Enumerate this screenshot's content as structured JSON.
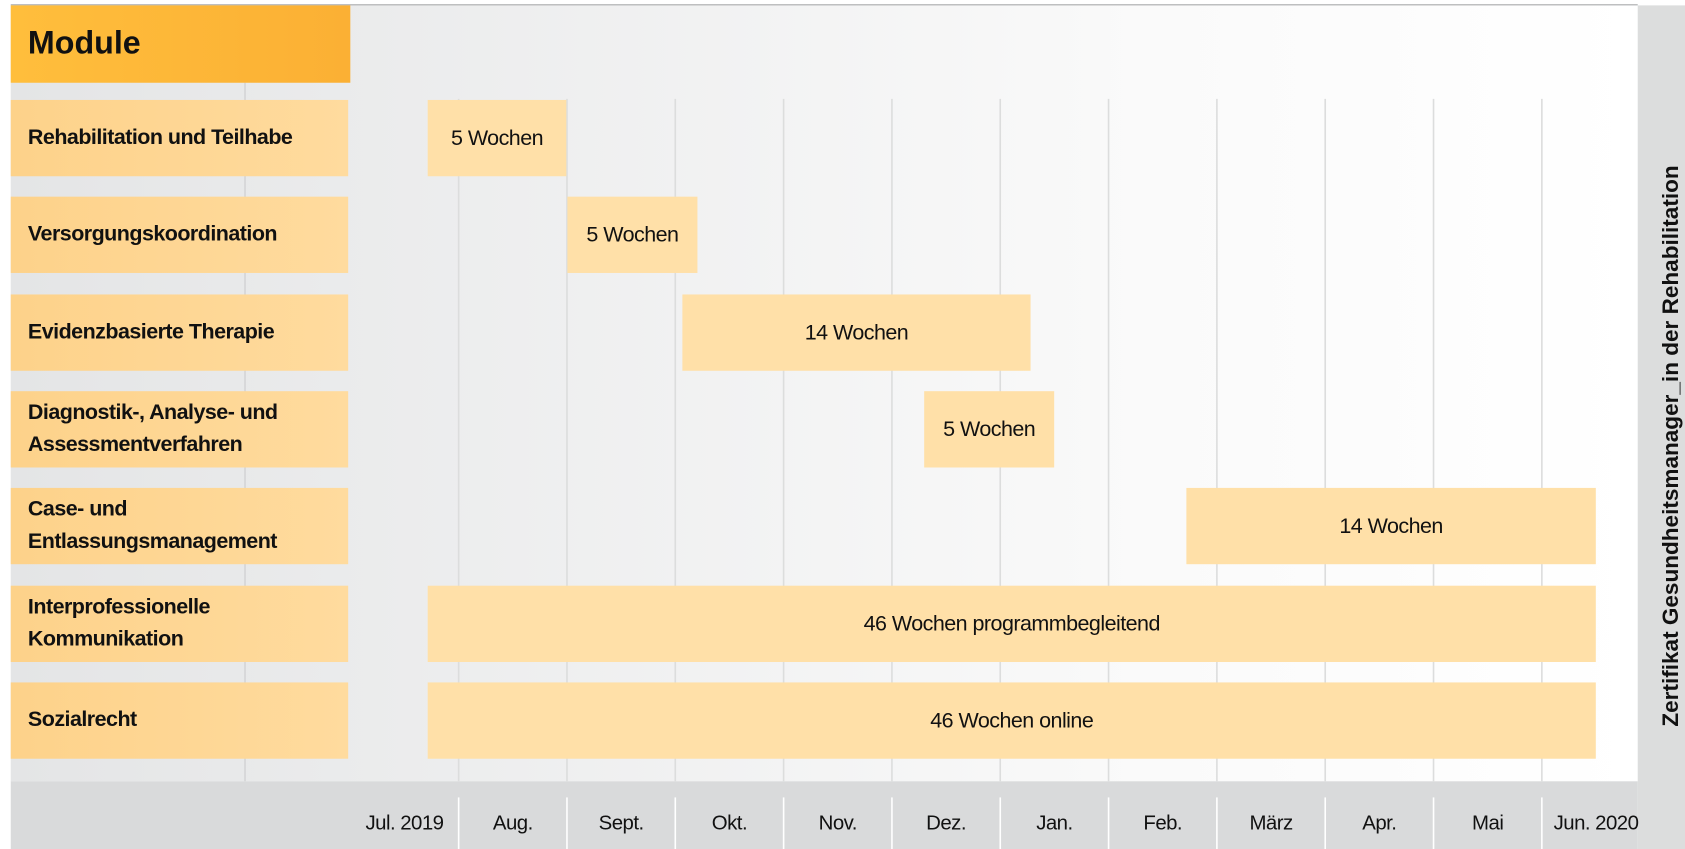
{
  "header": "Module",
  "rows": [
    {
      "label": [
        "Rehabilitation und Teilhabe"
      ],
      "duration": "5 Wochen"
    },
    {
      "label": [
        "Versorgungskoordination"
      ],
      "duration": "5 Wochen"
    },
    {
      "label": [
        "Evidenzbasierte Therapie"
      ],
      "duration": "14 Wochen"
    },
    {
      "label": [
        "Diagnostik-, Analyse- und",
        "Assessmentverfahren"
      ],
      "duration": "5 Wochen"
    },
    {
      "label": [
        "Case- und",
        "Entlassungsmanagement"
      ],
      "duration": "14 Wochen"
    },
    {
      "label": [
        "Interprofessionelle",
        "Kommunikation"
      ],
      "duration": "46 Wochen programmbegleitend"
    },
    {
      "label": [
        "Sozialrecht"
      ],
      "duration": "46 Wochen online"
    }
  ],
  "months": [
    "Jul. 2019",
    "Aug.",
    "Sept.",
    "Okt.",
    "Nov.",
    "Dez.",
    "Jan.",
    "Feb.",
    "März",
    "Apr.",
    "Mai",
    "Jun. 2020"
  ],
  "side_label": "Zertifikat Gesundheitsmanager_in der Rehabilitation"
}
